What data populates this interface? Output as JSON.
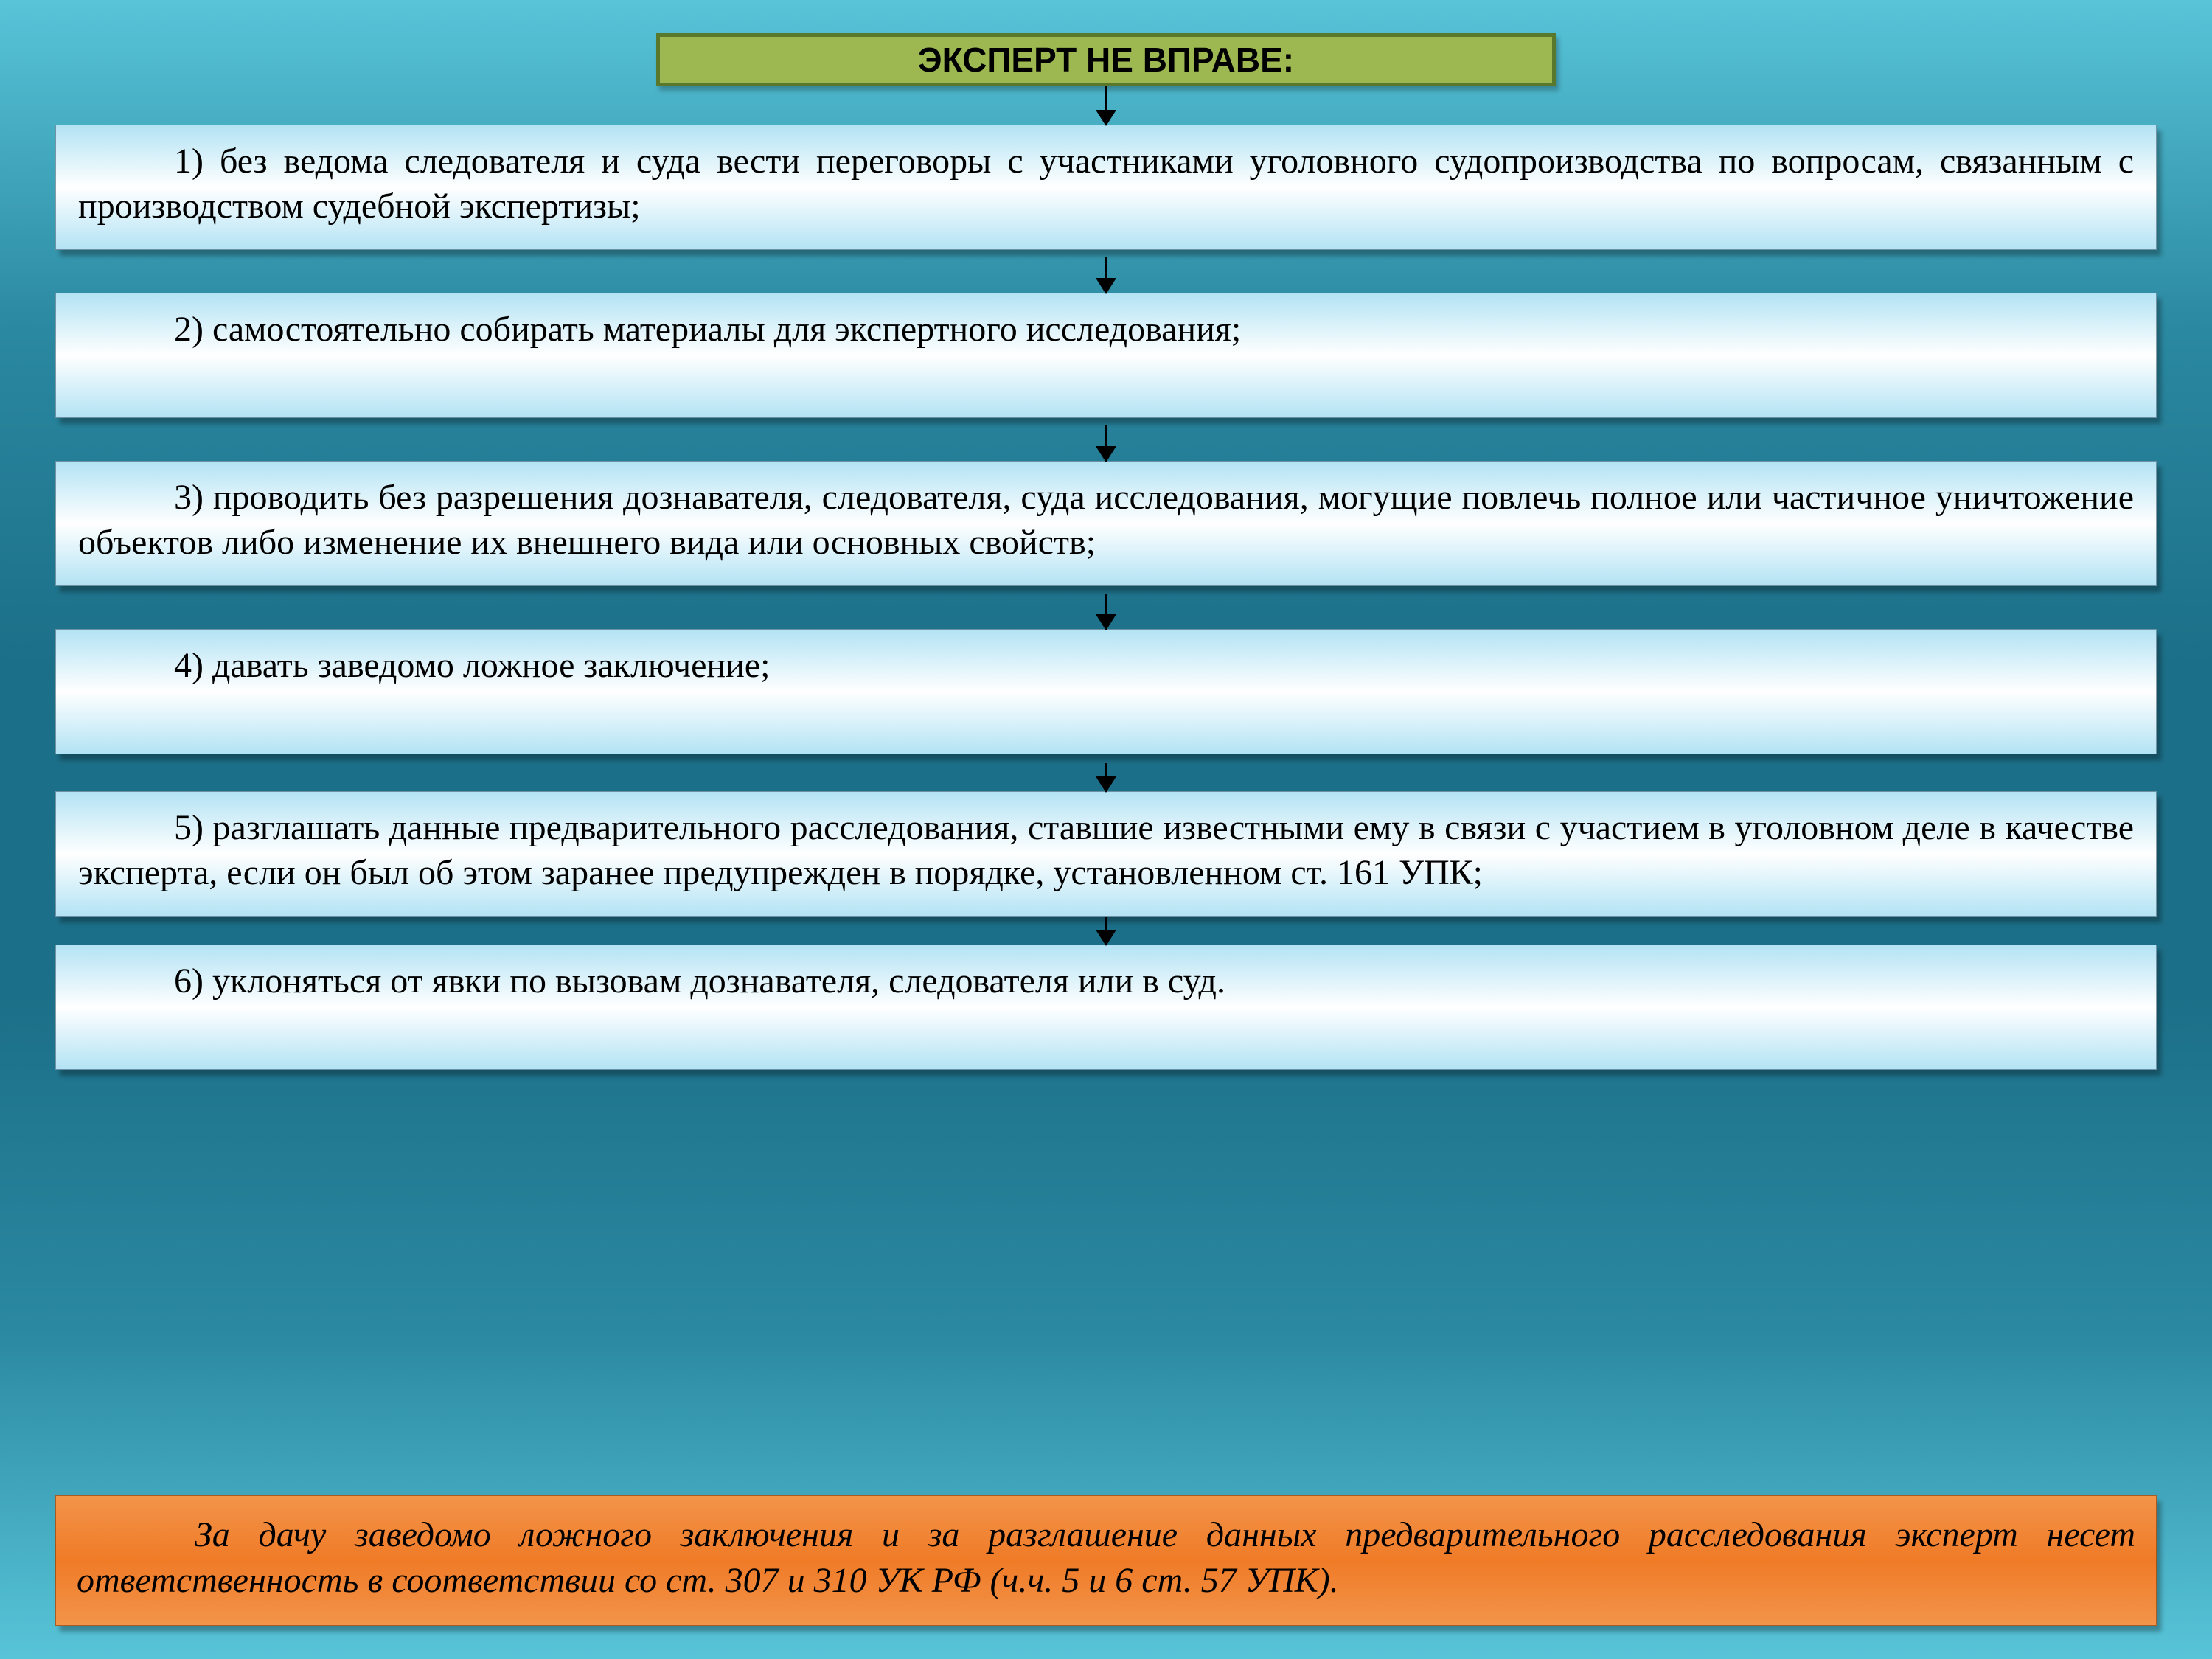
{
  "background": {
    "gradient_stops": [
      "#58c4d8",
      "#2a88a0",
      "#1c6f88",
      "#1c6f88",
      "#2a88a0",
      "#58c4d8"
    ],
    "gradient_dir": "to bottom"
  },
  "title": {
    "text": "ЭКСПЕРТ НЕ ВПРАВЕ:",
    "bg_color": "#9db751",
    "border_color": "#5a782c",
    "text_color": "#000000",
    "fontsize": 46
  },
  "arrow": {
    "color": "#000000",
    "line_width": 4,
    "head_size": 14
  },
  "arrow_heights": [
    52,
    48,
    48,
    48,
    38,
    38
  ],
  "item_gap_after": [
    10,
    10,
    10,
    12,
    0
  ],
  "item_box": {
    "gradient_top": "#b3e3f4",
    "gradient_mid": "#ffffff",
    "gradient_bottom": "#b3e3f4",
    "text_fontsize": 48,
    "text_color": "#000000",
    "text_indent": 130
  },
  "items": [
    "1) без ведома следователя и суда вести переговоры с участниками уголовного судопроизводства по вопросам, связанным с производством судебной экспертизы;",
    "2) самостоятельно собирать материалы для экспертного исследования;",
    "3) проводить без разрешения дознавателя, следователя, суда исследования, могущие повлечь полное или частичное уничтожение объектов либо изменение их внешнего вида или основных свойств;",
    "4) давать заведомо ложное заключение;",
    "5) разглашать данные предварительного расследования, ставшие известными ему в связи с участием в уголовном деле в качестве эксперта, если он был об этом заранее предупрежден в порядке, установленном ст. 161 УПК;",
    "6) уклоняться от явки по вызовам дознавателя, следователя или в суд."
  ],
  "footer": {
    "text": "За дачу заведомо ложного заключения и за разглашение данных предварительного расследования эксперт несет ответственность в соответствии со ст. 307 и 310 УК РФ (ч.ч. 5 и 6 ст. 57 УПК).",
    "gradient_top": "#f2944a",
    "gradient_mid": "#f07b27",
    "gradient_bottom": "#f2944a",
    "text_fontsize": 48,
    "text_indent": 160
  }
}
